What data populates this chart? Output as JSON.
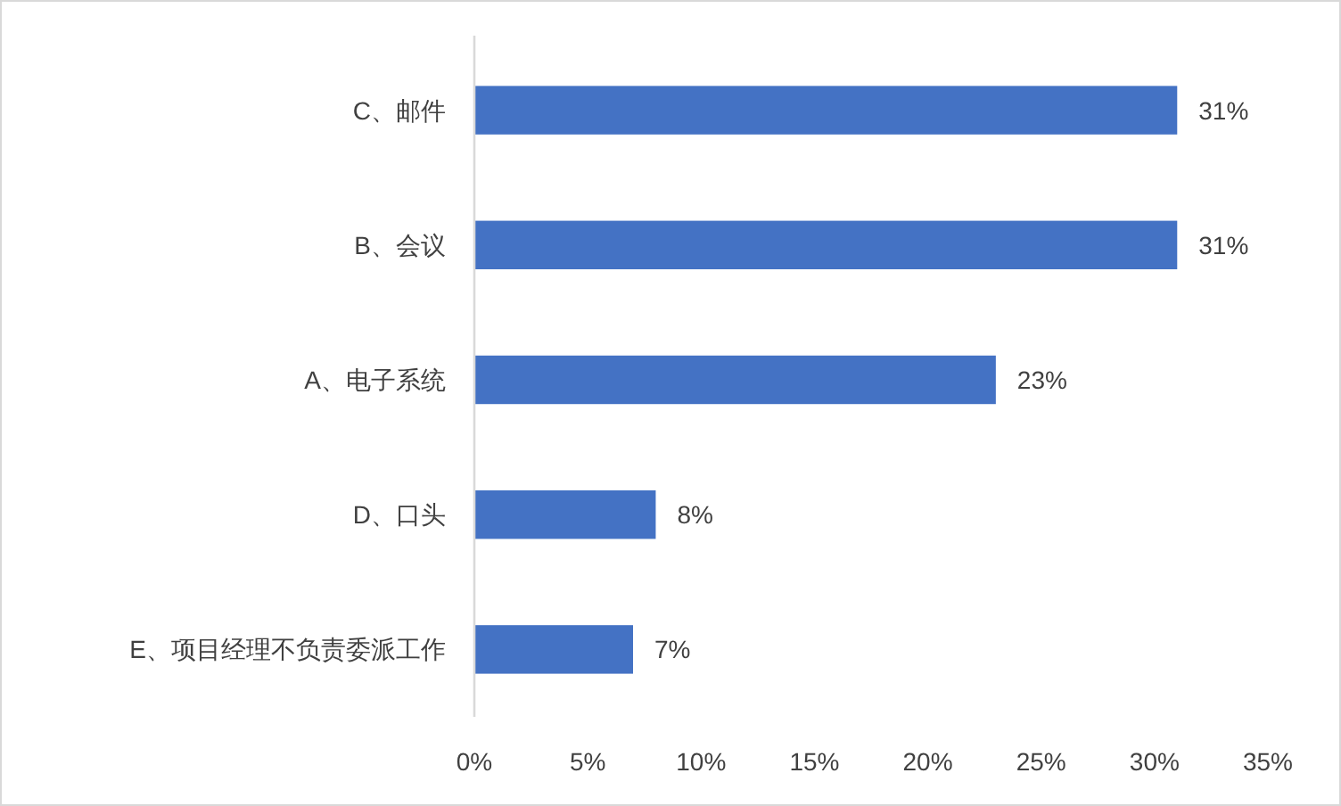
{
  "chart_data": {
    "type": "bar",
    "orientation": "horizontal",
    "categories": [
      "C、邮件",
      "B、会议",
      "A、电子系统",
      "D、口头",
      "E、项目经理不负责委派工作"
    ],
    "values": [
      31,
      31,
      23,
      8,
      7
    ],
    "value_labels": [
      "31%",
      "31%",
      "23%",
      "8%",
      "7%"
    ],
    "color": "#4472c4",
    "xlim": [
      0,
      35
    ],
    "xticks": [
      {
        "value": 0,
        "label": "0%"
      },
      {
        "value": 5,
        "label": "5%"
      },
      {
        "value": 10,
        "label": "10%"
      },
      {
        "value": 15,
        "label": "15%"
      },
      {
        "value": 20,
        "label": "20%"
      },
      {
        "value": 25,
        "label": "25%"
      },
      {
        "value": 30,
        "label": "30%"
      },
      {
        "value": 35,
        "label": "35%"
      }
    ],
    "grid": false
  }
}
